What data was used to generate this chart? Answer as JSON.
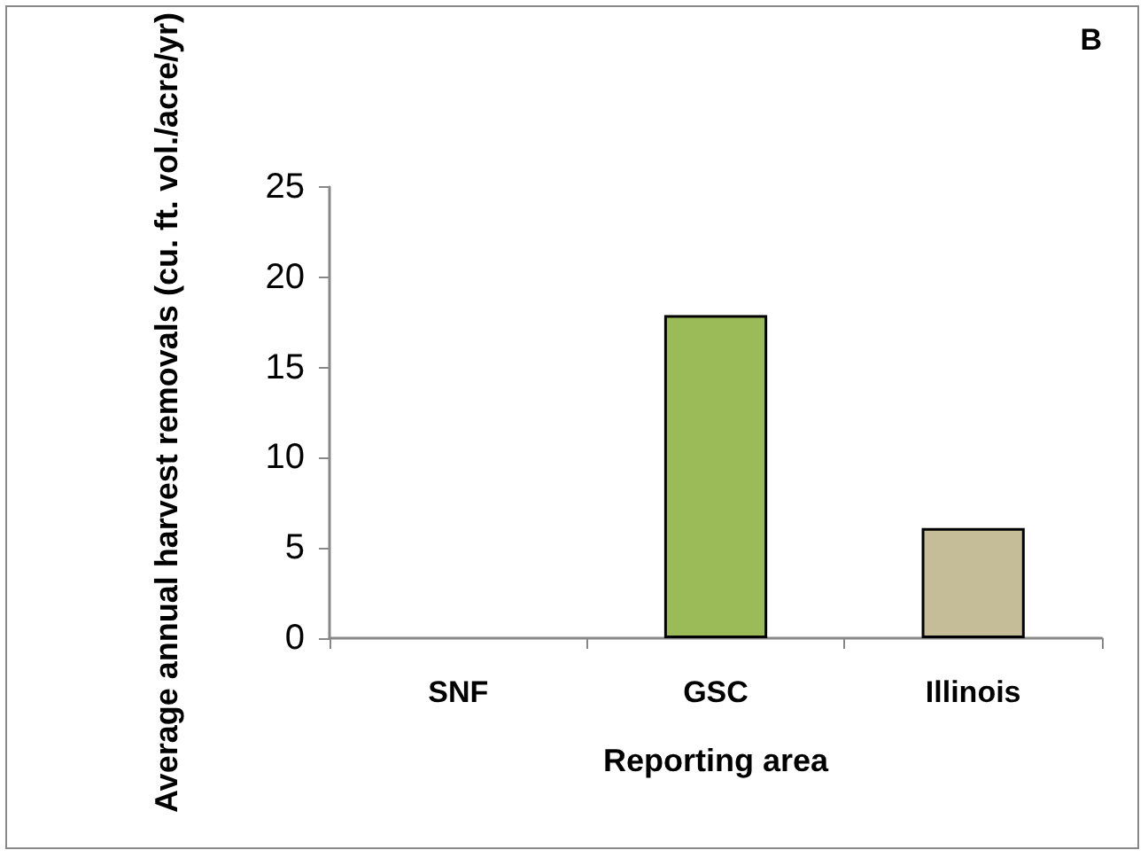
{
  "chart_data": {
    "type": "bar",
    "categories": [
      "SNF",
      "GSC",
      "Illinois"
    ],
    "values": [
      0,
      17.9,
      6.1
    ],
    "colors": [
      "#9bbb59",
      "#9bbb59",
      "#c4bd97"
    ],
    "xlabel": "Reporting area",
    "ylabel": "Average annual harvest removals (cu. ft. vol./acre/yr)",
    "ylim": [
      0,
      25
    ],
    "yticks": [
      0,
      5,
      10,
      15,
      20,
      25
    ],
    "grid": false,
    "annotations": [
      "B"
    ]
  }
}
